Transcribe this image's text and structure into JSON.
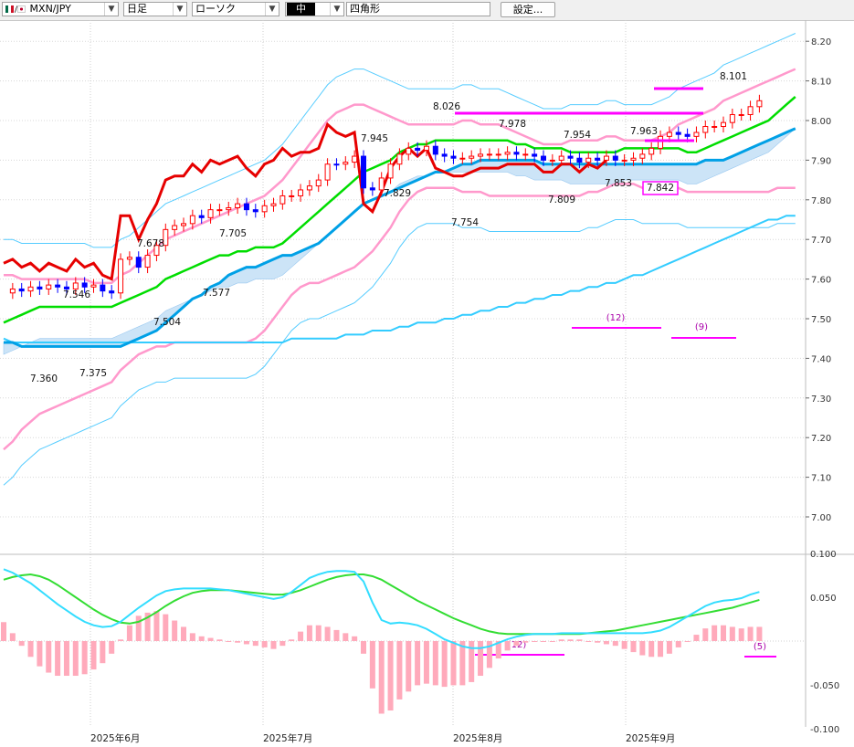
{
  "toolbar": {
    "symbol": "MXN/JPY",
    "timeframe": "日足",
    "chart_style": "ローソク",
    "color_option": "中",
    "drawing_tool": "四角形",
    "settings_label": "設定..."
  },
  "colors": {
    "candle_up": "#ff0000",
    "candle_down": "#0000ff",
    "ma_short": "#00a0e6",
    "ma_long": "#33ccff",
    "bollinger_mid": "#00dd00",
    "bollinger_2sigma": "#ff99cc",
    "lagging_span": "#e60000",
    "cloud": "#cce4f7",
    "macd": "#33ddff",
    "signal": "#33dd33",
    "histogram": "#ffaabb",
    "markers": "#ff00ff"
  },
  "chart_data": [
    {
      "type": "candlestick",
      "title": "",
      "xlabel": "",
      "ylabel": "",
      "ylim": [
        6.9,
        8.25
      ],
      "y_ticks": [
        "8.20",
        "8.10",
        "8.00",
        "7.90",
        "7.80",
        "7.70",
        "7.60",
        "7.50",
        "7.40",
        "7.30",
        "7.20",
        "7.10",
        "7.00"
      ],
      "x_ticks": [
        "2025年6月",
        "2025年7月",
        "2025年8月",
        "2025年9月"
      ],
      "grid": true,
      "annotations": [
        {
          "label": "7.546",
          "value": 7.546
        },
        {
          "label": "7.360",
          "value": 7.36
        },
        {
          "label": "7.375",
          "value": 7.375
        },
        {
          "label": "7.678",
          "value": 7.678
        },
        {
          "label": "7.504",
          "value": 7.504
        },
        {
          "label": "7.705",
          "value": 7.705
        },
        {
          "label": "7.577",
          "value": 7.577
        },
        {
          "label": "7.945",
          "value": 7.945
        },
        {
          "label": "7.829",
          "value": 7.829
        },
        {
          "label": "8.026",
          "value": 8.026
        },
        {
          "label": "7.754",
          "value": 7.754
        },
        {
          "label": "7.978",
          "value": 7.978
        },
        {
          "label": "7.809",
          "value": 7.809
        },
        {
          "label": "7.954",
          "value": 7.954
        },
        {
          "label": "7.853",
          "value": 7.853
        },
        {
          "label": "7.963",
          "value": 7.963
        },
        {
          "label": "7.842",
          "value": 7.842
        },
        {
          "label": "8.101",
          "value": 8.101
        }
      ],
      "period_labels": [
        "(12)",
        "(9)"
      ],
      "series": [
        {
          "name": "",
          "kind": "lagging",
          "values": [
            7.64,
            7.65,
            7.63,
            7.64,
            7.62,
            7.64,
            7.63,
            7.62,
            7.65,
            7.63,
            7.64,
            7.61,
            7.6,
            7.76,
            7.76,
            7.7,
            7.75,
            7.79,
            7.85,
            7.86,
            7.86,
            7.89,
            7.87,
            7.9,
            7.89,
            7.9,
            7.91,
            7.88,
            7.86,
            7.89,
            7.9,
            7.93,
            7.91,
            7.92,
            7.92,
            7.93,
            7.99,
            7.97,
            7.96,
            7.97,
            7.79,
            7.77,
            7.82,
            7.88,
            7.91,
            7.93,
            7.91,
            7.93,
            7.88,
            7.87,
            7.86,
            7.86,
            7.87,
            7.88,
            7.88,
            7.88,
            7.89,
            7.89,
            7.89,
            7.89,
            7.87,
            7.87,
            7.89,
            7.89,
            7.87,
            7.89,
            7.88,
            7.9,
            7.88,
            7.87,
            7.88,
            7.9,
            7.93,
            7.99,
            8.01,
            8.0,
            8.0,
            8.02,
            8.04,
            8.03,
            8.04,
            8.07,
            8.06,
            8.09,
            8.11
          ]
        },
        {
          "name": "",
          "kind": "ma_short",
          "values": [
            7.44,
            7.44,
            7.43,
            7.43,
            7.43,
            7.43,
            7.43,
            7.43,
            7.43,
            7.43,
            7.43,
            7.43,
            7.43,
            7.43,
            7.44,
            7.45,
            7.46,
            7.47,
            7.49,
            7.51,
            7.53,
            7.55,
            7.56,
            7.58,
            7.59,
            7.61,
            7.62,
            7.63,
            7.63,
            7.64,
            7.65,
            7.66,
            7.66,
            7.67,
            7.68,
            7.69,
            7.71,
            7.73,
            7.75,
            7.77,
            7.79,
            7.8,
            7.81,
            7.82,
            7.83,
            7.84,
            7.85,
            7.86,
            7.87,
            7.87,
            7.88,
            7.89,
            7.89,
            7.9,
            7.9,
            7.9,
            7.9,
            7.9,
            7.9,
            7.9,
            7.89,
            7.89,
            7.89,
            7.89,
            7.89,
            7.89,
            7.89,
            7.89,
            7.89,
            7.89,
            7.89,
            7.89,
            7.89,
            7.89,
            7.89,
            7.89,
            7.89,
            7.89,
            7.9,
            7.9,
            7.9,
            7.91,
            7.92,
            7.93,
            7.94,
            7.95,
            7.96,
            7.97,
            7.98
          ]
        },
        {
          "name": "",
          "kind": "ma_long",
          "values": [
            7.45,
            7.44,
            7.44,
            7.44,
            7.44,
            7.44,
            7.44,
            7.44,
            7.44,
            7.44,
            7.44,
            7.44,
            7.44,
            7.44,
            7.44,
            7.44,
            7.44,
            7.44,
            7.44,
            7.44,
            7.44,
            7.44,
            7.44,
            7.44,
            7.44,
            7.44,
            7.44,
            7.44,
            7.44,
            7.44,
            7.44,
            7.44,
            7.45,
            7.45,
            7.45,
            7.45,
            7.45,
            7.45,
            7.46,
            7.46,
            7.46,
            7.47,
            7.47,
            7.47,
            7.48,
            7.48,
            7.49,
            7.49,
            7.49,
            7.5,
            7.5,
            7.51,
            7.51,
            7.52,
            7.52,
            7.53,
            7.53,
            7.54,
            7.54,
            7.55,
            7.55,
            7.56,
            7.56,
            7.57,
            7.57,
            7.58,
            7.58,
            7.59,
            7.59,
            7.6,
            7.61,
            7.61,
            7.62,
            7.63,
            7.64,
            7.65,
            7.66,
            7.67,
            7.68,
            7.69,
            7.7,
            7.71,
            7.72,
            7.73,
            7.74,
            7.75,
            7.75,
            7.76,
            7.76
          ]
        },
        {
          "name": "",
          "kind": "bb_mid",
          "values": [
            7.49,
            7.5,
            7.51,
            7.52,
            7.53,
            7.53,
            7.53,
            7.53,
            7.53,
            7.53,
            7.53,
            7.53,
            7.53,
            7.54,
            7.55,
            7.56,
            7.57,
            7.58,
            7.6,
            7.61,
            7.62,
            7.63,
            7.64,
            7.65,
            7.66,
            7.66,
            7.67,
            7.67,
            7.68,
            7.68,
            7.68,
            7.69,
            7.71,
            7.73,
            7.75,
            7.77,
            7.79,
            7.81,
            7.83,
            7.85,
            7.87,
            7.88,
            7.89,
            7.9,
            7.92,
            7.93,
            7.94,
            7.94,
            7.95,
            7.95,
            7.95,
            7.95,
            7.95,
            7.95,
            7.95,
            7.95,
            7.95,
            7.94,
            7.94,
            7.93,
            7.93,
            7.93,
            7.93,
            7.92,
            7.92,
            7.92,
            7.92,
            7.92,
            7.92,
            7.93,
            7.93,
            7.93,
            7.93,
            7.93,
            7.93,
            7.93,
            7.92,
            7.92,
            7.93,
            7.94,
            7.95,
            7.96,
            7.97,
            7.98,
            7.99,
            8.0,
            8.02,
            8.04,
            8.06
          ]
        },
        {
          "name": "",
          "kind": "bb_upper",
          "values": [
            7.61,
            7.61,
            7.6,
            7.6,
            7.6,
            7.6,
            7.6,
            7.6,
            7.6,
            7.6,
            7.59,
            7.59,
            7.59,
            7.61,
            7.62,
            7.64,
            7.66,
            7.68,
            7.7,
            7.71,
            7.72,
            7.73,
            7.74,
            7.75,
            7.76,
            7.77,
            7.78,
            7.79,
            7.8,
            7.81,
            7.83,
            7.85,
            7.88,
            7.91,
            7.94,
            7.97,
            8.0,
            8.02,
            8.03,
            8.04,
            8.04,
            8.03,
            8.02,
            8.01,
            8.0,
            7.99,
            7.99,
            7.99,
            7.99,
            7.99,
            7.99,
            8.0,
            8.0,
            7.99,
            7.99,
            7.99,
            7.98,
            7.97,
            7.96,
            7.95,
            7.94,
            7.94,
            7.94,
            7.95,
            7.95,
            7.95,
            7.95,
            7.96,
            7.96,
            7.95,
            7.95,
            7.95,
            7.95,
            7.96,
            7.97,
            7.99,
            8.0,
            8.01,
            8.02,
            8.03,
            8.05,
            8.06,
            8.07,
            8.08,
            8.09,
            8.1,
            8.11,
            8.12,
            8.13
          ]
        },
        {
          "name": "",
          "kind": "bb_lower",
          "values": [
            7.17,
            7.19,
            7.22,
            7.24,
            7.26,
            7.27,
            7.28,
            7.29,
            7.3,
            7.31,
            7.32,
            7.33,
            7.34,
            7.37,
            7.39,
            7.41,
            7.42,
            7.43,
            7.43,
            7.44,
            7.44,
            7.44,
            7.44,
            7.44,
            7.44,
            7.44,
            7.44,
            7.44,
            7.45,
            7.47,
            7.5,
            7.53,
            7.56,
            7.58,
            7.59,
            7.59,
            7.6,
            7.61,
            7.62,
            7.63,
            7.65,
            7.67,
            7.7,
            7.73,
            7.77,
            7.8,
            7.82,
            7.83,
            7.83,
            7.83,
            7.83,
            7.82,
            7.82,
            7.82,
            7.81,
            7.81,
            7.81,
            7.81,
            7.81,
            7.81,
            7.81,
            7.81,
            7.81,
            7.81,
            7.81,
            7.82,
            7.82,
            7.83,
            7.84,
            7.84,
            7.84,
            7.83,
            7.83,
            7.83,
            7.83,
            7.83,
            7.82,
            7.82,
            7.82,
            7.82,
            7.82,
            7.82,
            7.82,
            7.82,
            7.82,
            7.82,
            7.83,
            7.83,
            7.83
          ]
        }
      ]
    },
    {
      "type": "line",
      "title": "",
      "xlabel": "",
      "ylabel": "",
      "ylim": [
        -0.1,
        0.1
      ],
      "y_ticks": [
        "0.100",
        "0.050",
        "-0.050",
        "-0.100"
      ],
      "period_labels": [
        "(12)",
        "(5)"
      ],
      "series": [
        {
          "name": "",
          "kind": "macd",
          "values": [
            0.082,
            0.078,
            0.072,
            0.066,
            0.058,
            0.05,
            0.042,
            0.035,
            0.028,
            0.022,
            0.018,
            0.016,
            0.017,
            0.022,
            0.03,
            0.038,
            0.045,
            0.052,
            0.057,
            0.059,
            0.06,
            0.06,
            0.06,
            0.06,
            0.059,
            0.058,
            0.056,
            0.054,
            0.052,
            0.05,
            0.048,
            0.05,
            0.056,
            0.064,
            0.072,
            0.076,
            0.079,
            0.08,
            0.08,
            0.079,
            0.068,
            0.044,
            0.024,
            0.02,
            0.021,
            0.02,
            0.018,
            0.014,
            0.008,
            0.002,
            -0.002,
            -0.006,
            -0.008,
            -0.008,
            -0.006,
            -0.002,
            0.002,
            0.005,
            0.007,
            0.008,
            0.008,
            0.008,
            0.009,
            0.009,
            0.009,
            0.009,
            0.009,
            0.009,
            0.009,
            0.009,
            0.009,
            0.009,
            0.01,
            0.012,
            0.016,
            0.022,
            0.028,
            0.034,
            0.04,
            0.044,
            0.046,
            0.047,
            0.049,
            0.053,
            0.056
          ]
        },
        {
          "name": "",
          "kind": "signal",
          "values": [
            0.07,
            0.073,
            0.075,
            0.076,
            0.074,
            0.07,
            0.064,
            0.057,
            0.05,
            0.043,
            0.036,
            0.03,
            0.025,
            0.021,
            0.02,
            0.022,
            0.027,
            0.033,
            0.04,
            0.046,
            0.051,
            0.055,
            0.057,
            0.058,
            0.058,
            0.058,
            0.057,
            0.056,
            0.055,
            0.054,
            0.053,
            0.053,
            0.055,
            0.058,
            0.062,
            0.066,
            0.07,
            0.073,
            0.075,
            0.076,
            0.076,
            0.074,
            0.07,
            0.064,
            0.058,
            0.052,
            0.046,
            0.041,
            0.036,
            0.031,
            0.026,
            0.022,
            0.018,
            0.014,
            0.011,
            0.009,
            0.008,
            0.008,
            0.008,
            0.008,
            0.008,
            0.008,
            0.008,
            0.008,
            0.008,
            0.009,
            0.01,
            0.011,
            0.012,
            0.014,
            0.016,
            0.018,
            0.02,
            0.022,
            0.024,
            0.026,
            0.028,
            0.03,
            0.032,
            0.034,
            0.036,
            0.038,
            0.041,
            0.044,
            0.047
          ]
        }
      ]
    }
  ]
}
